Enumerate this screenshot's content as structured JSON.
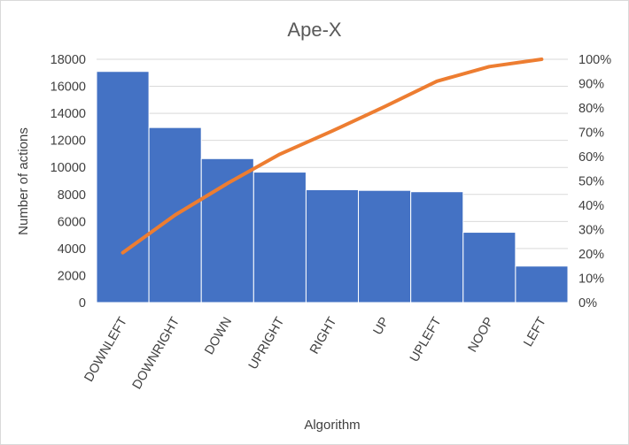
{
  "chart_data": {
    "type": "bar",
    "title": "Ape-X",
    "xlabel": "Algorithm",
    "ylabel": "Number of actions",
    "categories": [
      "DOWNLEFT",
      "DOWNRIGHT",
      "DOWN",
      "UPRIGHT",
      "RIGHT",
      "UP",
      "UPLEFT",
      "NOOP",
      "LEFT"
    ],
    "series": [
      {
        "type": "bar",
        "axis": "left",
        "values": [
          17100,
          12950,
          10650,
          9650,
          8350,
          8300,
          8200,
          5200,
          2700
        ]
      },
      {
        "type": "line",
        "axis": "right",
        "values": [
          0.205,
          0.36,
          0.49,
          0.61,
          0.705,
          0.805,
          0.91,
          0.97,
          1.0
        ]
      }
    ],
    "ylim": [
      0,
      18000
    ],
    "yticks": [
      0,
      2000,
      4000,
      6000,
      8000,
      10000,
      12000,
      14000,
      16000,
      18000
    ],
    "y2lim": [
      0,
      1
    ],
    "y2ticks": [
      "0%",
      "10%",
      "20%",
      "30%",
      "40%",
      "50%",
      "60%",
      "70%",
      "80%",
      "90%",
      "100%"
    ],
    "grid": true,
    "legend": "none",
    "colors": {
      "bar": "#4472C4",
      "line": "#ED7D31"
    }
  }
}
